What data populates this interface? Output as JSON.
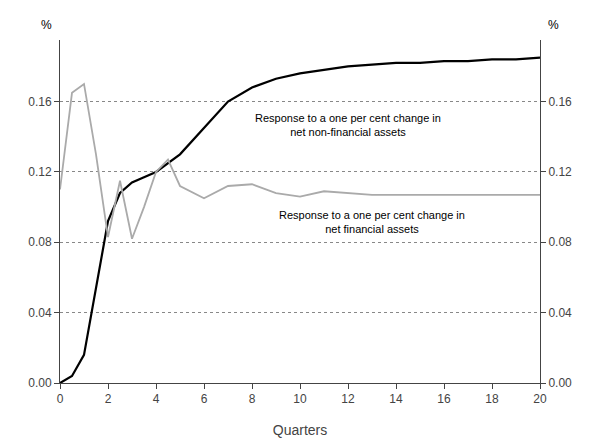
{
  "chart_data": {
    "type": "line",
    "xlabel": "Quarters",
    "ylabel": "%",
    "y2label": "%",
    "series": [
      {
        "x": [
          0,
          0.5,
          1,
          1.5,
          2,
          2.5,
          3,
          3.5,
          4,
          5,
          6,
          7,
          8,
          9,
          10,
          11,
          12,
          13,
          14,
          15,
          16,
          17,
          18,
          19,
          20
        ],
        "values": [
          0.0,
          0.004,
          0.016,
          0.055,
          0.092,
          0.108,
          0.114,
          0.117,
          0.12,
          0.13,
          0.145,
          0.16,
          0.168,
          0.173,
          0.176,
          0.178,
          0.18,
          0.181,
          0.182,
          0.182,
          0.183,
          0.183,
          0.184,
          0.184,
          0.185
        ],
        "color": "#000000"
      },
      {
        "x": [
          0,
          0.5,
          1,
          1.5,
          2,
          2.5,
          3,
          3.5,
          4,
          4.5,
          5,
          6,
          7,
          8,
          9,
          10,
          11,
          12,
          13,
          14,
          15,
          16,
          17,
          18,
          19,
          20
        ],
        "values": [
          0.11,
          0.165,
          0.17,
          0.13,
          0.083,
          0.115,
          0.082,
          0.1,
          0.12,
          0.127,
          0.112,
          0.105,
          0.112,
          0.113,
          0.108,
          0.106,
          0.109,
          0.108,
          0.107,
          0.107,
          0.107,
          0.107,
          0.107,
          0.107,
          0.107,
          0.107
        ],
        "color": "#aaaaaa"
      }
    ],
    "xlim": [
      0,
      20
    ],
    "xticks": [
      0,
      2,
      4,
      6,
      8,
      10,
      12,
      14,
      16,
      18,
      20
    ],
    "ylim": [
      0.0,
      0.195
    ],
    "yticks": [
      {
        "value": 0,
        "label": "0.00"
      },
      0.04,
      0.08,
      0.12,
      0.16
    ],
    "y2lim": [
      0.0,
      0.195
    ],
    "y2ticks": [
      {
        "value": 0,
        "label": "0.00"
      },
      0.04,
      0.08,
      0.12,
      0.16
    ],
    "grid": true,
    "annotations": [
      {
        "text": "Response to a one per cent change in\nnet non-financial assets",
        "x": 12.0,
        "y": 0.155
      },
      {
        "text": "Response to a one per cent change in\nnet financial assets",
        "x": 13.0,
        "y": 0.1
      }
    ]
  }
}
